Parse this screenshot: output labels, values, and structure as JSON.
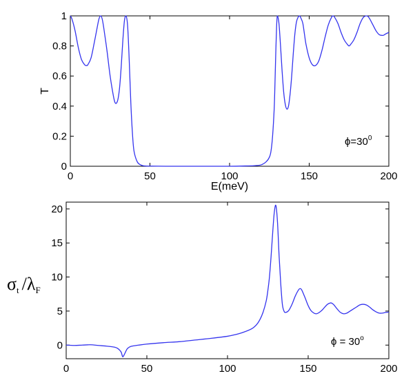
{
  "chart_data": [
    {
      "type": "line",
      "title": "",
      "xlabel": "E(meV)",
      "ylabel": "T",
      "xlim": [
        0,
        200
      ],
      "ylim": [
        0,
        1
      ],
      "x_ticks": [
        "0",
        "50",
        "100",
        "150",
        "200"
      ],
      "y_ticks": [
        "0",
        "0.2",
        "0.4",
        "0.6",
        "0.8",
        "1"
      ],
      "grid": false,
      "line_color": "#3333ee",
      "annotation": {
        "main": "ϕ=30",
        "sup": "0"
      },
      "series": [
        {
          "x": [
            0,
            1,
            3,
            5,
            7,
            9,
            10,
            11,
            13,
            15,
            17,
            18,
            19,
            20,
            21,
            23,
            25,
            27,
            28,
            29,
            30,
            31,
            32,
            33,
            34,
            35,
            36,
            37,
            38,
            39,
            40,
            42,
            44,
            46,
            50,
            60,
            80,
            100,
            110,
            116,
            120,
            123,
            125,
            126,
            127,
            128,
            128.5,
            129,
            129.5,
            130,
            131,
            132,
            133,
            134,
            135,
            136,
            137,
            138,
            139,
            140,
            141,
            142,
            143,
            144,
            145,
            146,
            147,
            148,
            150,
            152,
            154,
            156,
            158,
            160,
            162,
            164,
            165,
            166,
            168,
            170,
            172,
            174,
            175,
            176,
            178,
            180,
            182,
            184,
            186,
            187,
            188,
            190,
            192,
            194,
            196,
            197,
            198,
            200
          ],
          "y": [
            1,
            0.98,
            0.9,
            0.79,
            0.71,
            0.675,
            0.67,
            0.675,
            0.72,
            0.82,
            0.93,
            0.98,
            1,
            0.98,
            0.92,
            0.77,
            0.6,
            0.47,
            0.425,
            0.42,
            0.45,
            0.53,
            0.67,
            0.84,
            0.97,
            1,
            0.93,
            0.7,
            0.42,
            0.22,
            0.1,
            0.03,
            0.01,
            0.003,
            0.001,
            0,
            0,
            0,
            0.002,
            0.004,
            0.01,
            0.03,
            0.06,
            0.1,
            0.2,
            0.38,
            0.55,
            0.75,
            0.92,
            1,
            0.95,
            0.8,
            0.63,
            0.49,
            0.41,
            0.38,
            0.4,
            0.48,
            0.6,
            0.75,
            0.88,
            0.96,
            0.99,
            1,
            0.98,
            0.95,
            0.88,
            0.81,
            0.72,
            0.675,
            0.67,
            0.7,
            0.77,
            0.86,
            0.94,
            0.99,
            1,
            0.99,
            0.95,
            0.89,
            0.84,
            0.81,
            0.8,
            0.81,
            0.84,
            0.89,
            0.95,
            0.99,
            1,
            0.995,
            0.98,
            0.94,
            0.9,
            0.875,
            0.87,
            0.873,
            0.88,
            0.89
          ]
        }
      ]
    },
    {
      "type": "line",
      "title": "",
      "xlabel": "",
      "ylabel": {
        "sigma": "σ",
        "sigma_sub": "t",
        "slash": "/",
        "lambda": "λ",
        "lambda_sub": "F"
      },
      "xlim": [
        0,
        200
      ],
      "ylim": [
        -2,
        21
      ],
      "x_ticks": [
        "0",
        "50",
        "100",
        "150",
        "200"
      ],
      "y_ticks": [
        "0",
        "5",
        "10",
        "15",
        "20"
      ],
      "grid": false,
      "line_color": "#3333ee",
      "annotation": {
        "main": "ϕ = 30",
        "sup": "o"
      },
      "series": [
        {
          "x": [
            0,
            5,
            10,
            15,
            20,
            25,
            30,
            32,
            34,
            35,
            36,
            37,
            38,
            40,
            45,
            50,
            60,
            70,
            80,
            90,
            100,
            105,
            110,
            115,
            118,
            120,
            122,
            124,
            125,
            126,
            127,
            128,
            129,
            130,
            131,
            132,
            133,
            134,
            135,
            136,
            138,
            140,
            142,
            144,
            145,
            146,
            148,
            150,
            152,
            155,
            158,
            160,
            162,
            164,
            165,
            166,
            168,
            170,
            172,
            174,
            176,
            178,
            180,
            182,
            184,
            186,
            188,
            190,
            192,
            194,
            196,
            198,
            200
          ],
          "y": [
            0,
            -0.05,
            0,
            0.05,
            -0.05,
            -0.15,
            -0.3,
            -0.5,
            -1.0,
            -1.7,
            -1.4,
            -0.9,
            -0.5,
            -0.2,
            0,
            0.15,
            0.35,
            0.5,
            0.75,
            1.0,
            1.3,
            1.55,
            1.9,
            2.4,
            3.0,
            3.7,
            4.8,
            6.5,
            8,
            10,
            13,
            16.5,
            19.5,
            20.5,
            18,
            13,
            9,
            6,
            5,
            4.8,
            5.1,
            6.0,
            7.2,
            8.1,
            8.3,
            8.1,
            7.0,
            5.8,
            5.0,
            4.6,
            5.0,
            5.5,
            6.0,
            6.2,
            6.1,
            5.9,
            5.3,
            4.8,
            4.6,
            4.7,
            5.0,
            5.3,
            5.6,
            5.9,
            6.0,
            5.9,
            5.6,
            5.2,
            4.9,
            4.7,
            4.7,
            4.8,
            4.85
          ]
        }
      ]
    }
  ]
}
